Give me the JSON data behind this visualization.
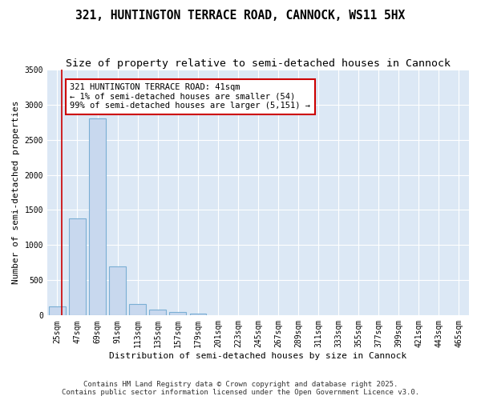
{
  "title1": "321, HUNTINGTON TERRACE ROAD, CANNOCK, WS11 5HX",
  "title2": "Size of property relative to semi-detached houses in Cannock",
  "xlabel": "Distribution of semi-detached houses by size in Cannock",
  "ylabel": "Number of semi-detached properties",
  "bar_color": "#c8d8ee",
  "bar_edge_color": "#7bafd4",
  "bg_color": "#dce8f5",
  "grid_color": "#ffffff",
  "red_line_x": 41,
  "annotation_text": "321 HUNTINGTON TERRACE ROAD: 41sqm\n← 1% of semi-detached houses are smaller (54)\n99% of semi-detached houses are larger (5,151) →",
  "annotation_box_color": "#ffffff",
  "annotation_border_color": "#cc0000",
  "bins_left_edges": [
    25,
    47,
    69,
    91,
    113,
    135,
    157,
    179,
    201,
    223,
    245,
    267,
    289,
    311,
    333,
    355,
    377,
    399,
    421,
    443,
    465
  ],
  "bin_width": 22,
  "bin_heights": [
    130,
    1380,
    2800,
    700,
    160,
    80,
    50,
    30,
    0,
    0,
    0,
    0,
    0,
    0,
    0,
    0,
    0,
    0,
    0,
    0,
    0
  ],
  "ylim": [
    0,
    3500
  ],
  "yticks": [
    0,
    500,
    1000,
    1500,
    2000,
    2500,
    3000,
    3500
  ],
  "footer1": "Contains HM Land Registry data © Crown copyright and database right 2025.",
  "footer2": "Contains public sector information licensed under the Open Government Licence v3.0.",
  "title_fontsize": 10.5,
  "subtitle_fontsize": 9.5,
  "axis_label_fontsize": 8,
  "tick_fontsize": 7,
  "annotation_fontsize": 7.5,
  "footer_fontsize": 6.5,
  "fig_bg": "#ffffff"
}
